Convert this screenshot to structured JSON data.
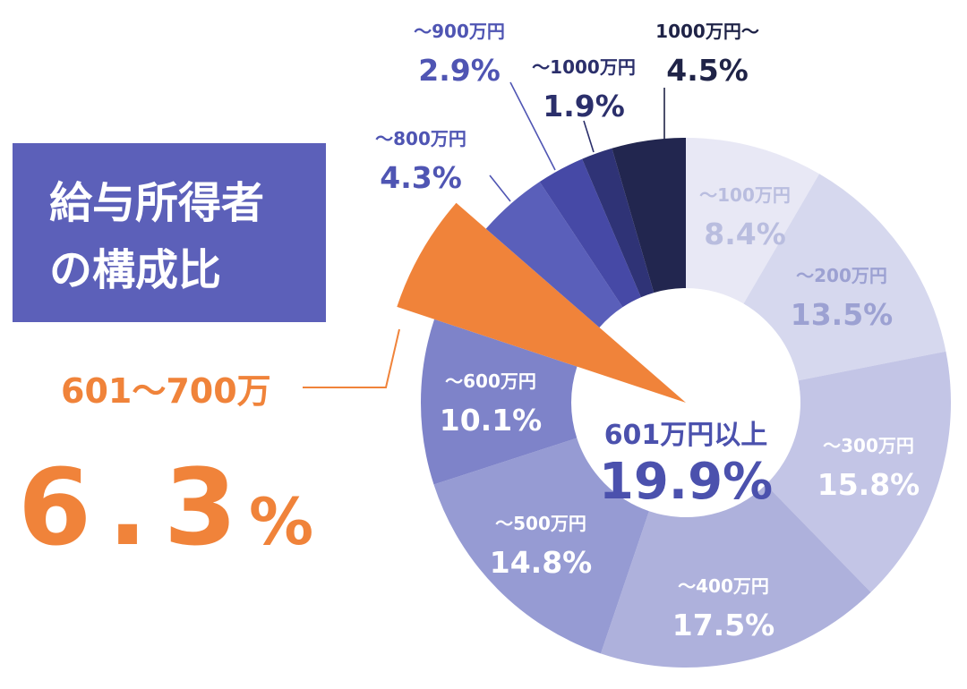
{
  "chart_data": {
    "type": "pie",
    "title": "給与所得者の構成比",
    "title_lines": [
      "給与所得者",
      "の構成比"
    ],
    "center_label": "601万円以上",
    "center_value": "19.9%",
    "highlight": {
      "category": "601〜700万",
      "value_text": "6.3",
      "unit": "%",
      "color": "#f0833a"
    },
    "series": [
      {
        "label": "〜100万円",
        "value": 8.4,
        "value_text": "8.4%",
        "color": "#e8e8f5",
        "text_color": "#b9bddf"
      },
      {
        "label": "〜200万円",
        "value": 13.5,
        "value_text": "13.5%",
        "color": "#d6d8ee",
        "text_color": "#9ca1d2"
      },
      {
        "label": "〜300万円",
        "value": 15.8,
        "value_text": "15.8%",
        "color": "#c3c5e6",
        "text_color": "#ffffff"
      },
      {
        "label": "〜400万円",
        "value": 17.5,
        "value_text": "17.5%",
        "color": "#aeb1dc",
        "text_color": "#ffffff"
      },
      {
        "label": "〜500万円",
        "value": 14.8,
        "value_text": "14.8%",
        "color": "#969bd3",
        "text_color": "#ffffff"
      },
      {
        "label": "〜600万円",
        "value": 10.1,
        "value_text": "10.1%",
        "color": "#7e83c9",
        "text_color": "#ffffff"
      },
      {
        "label": "601〜700万",
        "value": 6.3,
        "value_text": "6.3%",
        "color": "#f0833a",
        "text_color": "#f0833a"
      },
      {
        "label": "〜800万円",
        "value": 4.3,
        "value_text": "4.3%",
        "color": "#5a5fba",
        "text_color": "#4f55b3"
      },
      {
        "label": "〜900万円",
        "value": 2.9,
        "value_text": "2.9%",
        "color": "#4649a6",
        "text_color": "#4f55b3"
      },
      {
        "label": "〜1000万円",
        "value": 1.9,
        "value_text": "1.9%",
        "color": "#2f3376",
        "text_color": "#2b2f6b"
      },
      {
        "label": "1000万円〜",
        "value": 4.5,
        "value_text": "4.5%",
        "color": "#22264f",
        "text_color": "#1f2347"
      }
    ],
    "colors": {
      "title_bg": "#5c60b9",
      "title_text": "#ffffff",
      "center_text": "#4b51ad"
    }
  }
}
